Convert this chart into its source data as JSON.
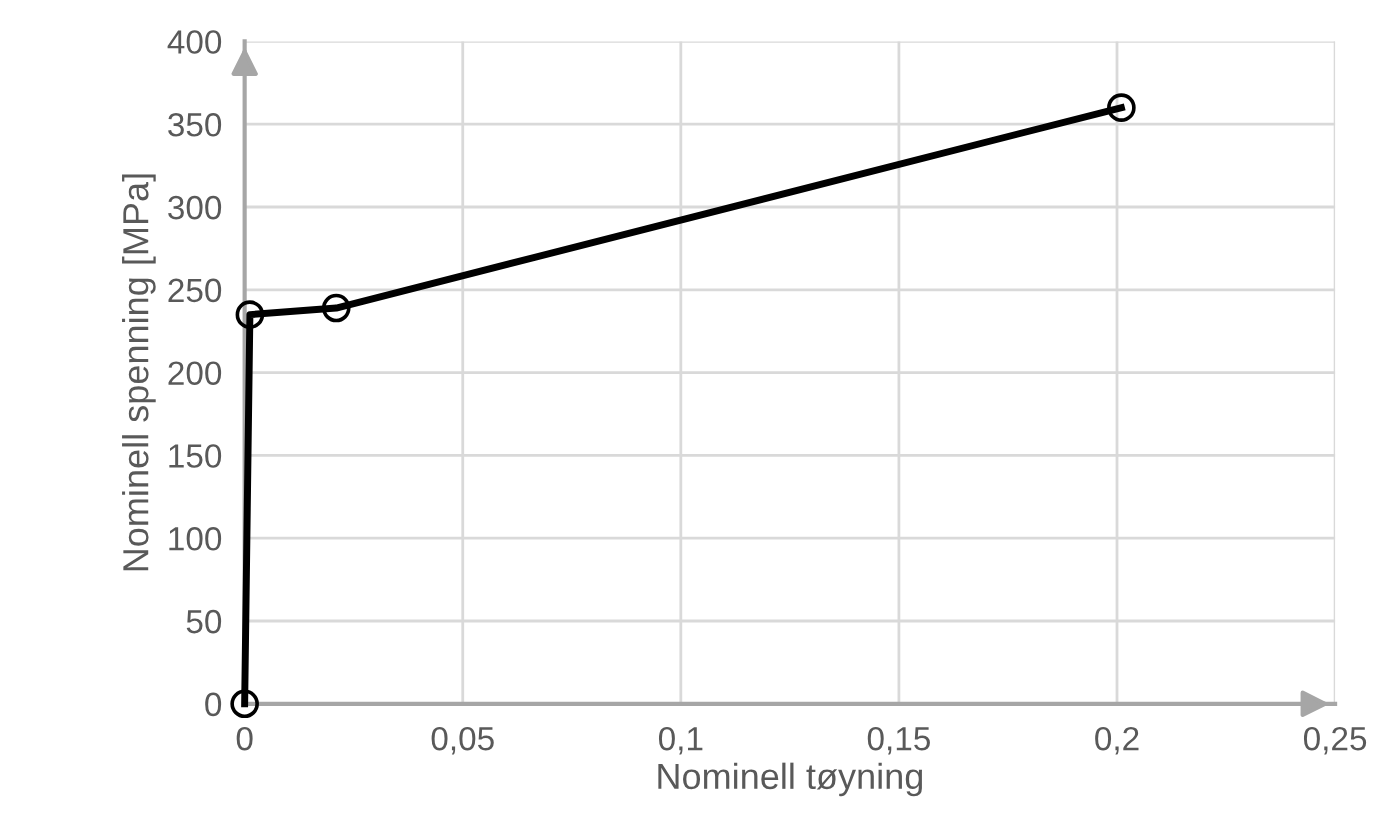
{
  "chart_data": {
    "type": "line",
    "xlabel": "Nominell tøyning",
    "ylabel": "Nominell spenning [MPa]",
    "x": [
      0,
      0.0012,
      0.021,
      0.201
    ],
    "series": [
      {
        "color": "#000000",
        "values": [
          0,
          235,
          239,
          360
        ]
      }
    ],
    "marker": "circle",
    "line_style": "solid",
    "grid": true,
    "xlim": [
      0,
      0.25
    ],
    "ylim": [
      0,
      400
    ],
    "xticks": [
      0,
      {
        "value": 0.05,
        "label": "0,05"
      },
      {
        "value": 0.1,
        "label": "0,1"
      },
      {
        "value": 0.15,
        "label": "0,15"
      },
      {
        "value": 0.2,
        "label": "0,2"
      },
      {
        "value": 0.25,
        "label": "0,25"
      }
    ],
    "yticks": [
      0,
      50,
      100,
      150,
      200,
      250,
      300,
      350,
      400
    ]
  }
}
